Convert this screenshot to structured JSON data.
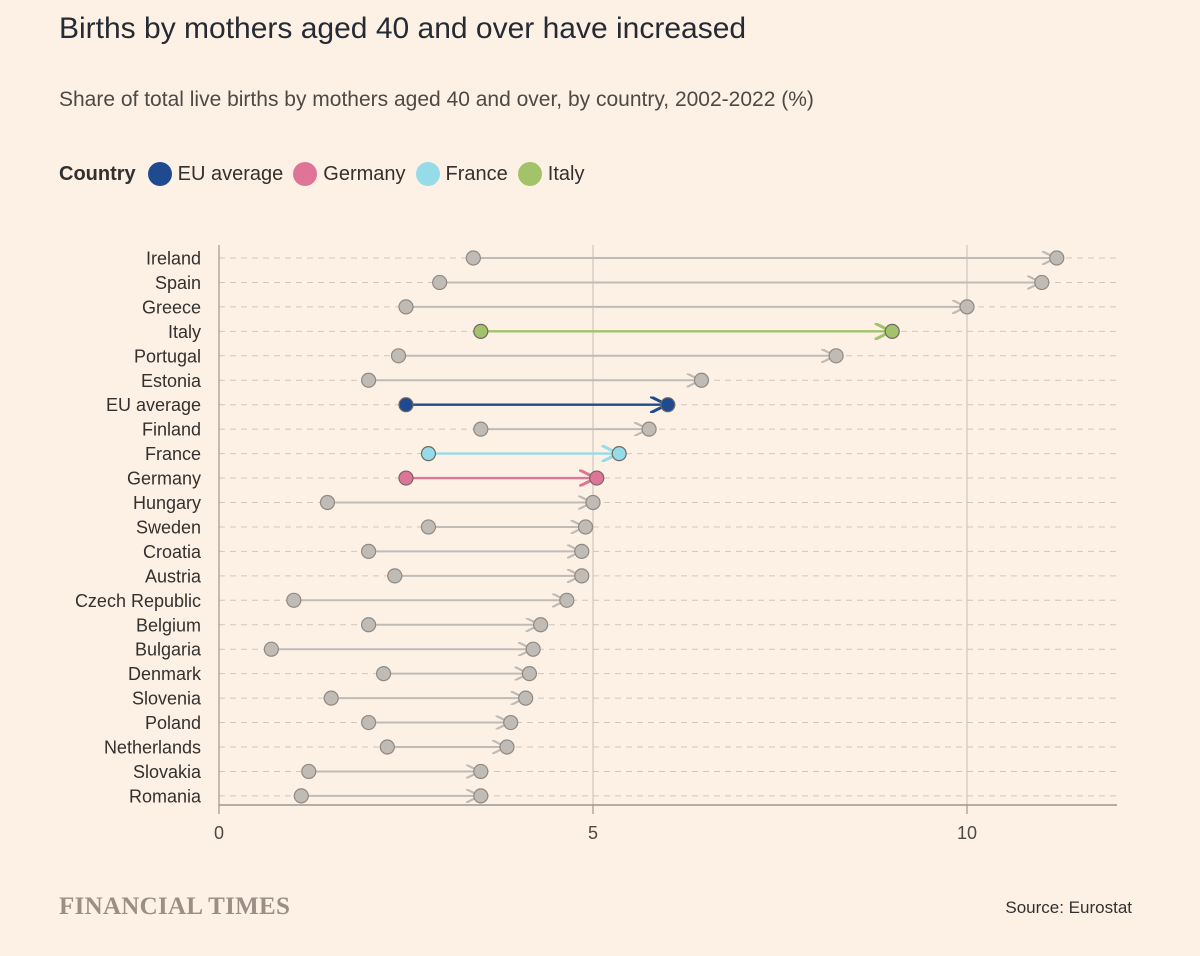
{
  "header": {
    "title": "Births by mothers aged 40 and over have increased",
    "subtitle": "Share of total live births by mothers aged 40 and over, by country, 2002-2022 (%)"
  },
  "legend": {
    "title": "Country",
    "items": [
      {
        "label": "EU average",
        "color": "#204a8f"
      },
      {
        "label": "Germany",
        "color": "#e07496"
      },
      {
        "label": "France",
        "color": "#96dbe8"
      },
      {
        "label": "Italy",
        "color": "#a3c36a"
      }
    ]
  },
  "footer": {
    "logo": "FINANCIAL TIMES",
    "source": "Source: Eurostat"
  },
  "chart_data": {
    "type": "dumbbell",
    "xlim": [
      0,
      12
    ],
    "xticks": [
      0,
      5,
      10
    ],
    "xtick_labels": [
      "0",
      "5",
      "10"
    ],
    "grid": "vertical at ticks, dashed horizontal per row",
    "default_color": "#c1bbb6",
    "rows": [
      {
        "country": "Ireland",
        "start": 3.4,
        "end": 11.2
      },
      {
        "country": "Spain",
        "start": 2.95,
        "end": 11.0
      },
      {
        "country": "Greece",
        "start": 2.5,
        "end": 10.0
      },
      {
        "country": "Italy",
        "start": 3.5,
        "end": 9.0,
        "highlight": "#a3c36a"
      },
      {
        "country": "Portugal",
        "start": 2.4,
        "end": 8.25
      },
      {
        "country": "Estonia",
        "start": 2.0,
        "end": 6.45
      },
      {
        "country": "EU average",
        "start": 2.5,
        "end": 6.0,
        "highlight": "#204a8f"
      },
      {
        "country": "Finland",
        "start": 3.5,
        "end": 5.75
      },
      {
        "country": "France",
        "start": 2.8,
        "end": 5.35,
        "highlight": "#96dbe8"
      },
      {
        "country": "Germany",
        "start": 2.5,
        "end": 5.05,
        "highlight": "#e07496"
      },
      {
        "country": "Hungary",
        "start": 1.45,
        "end": 5.0
      },
      {
        "country": "Sweden",
        "start": 2.8,
        "end": 4.9
      },
      {
        "country": "Croatia",
        "start": 2.0,
        "end": 4.85
      },
      {
        "country": "Austria",
        "start": 2.35,
        "end": 4.85
      },
      {
        "country": "Czech Republic",
        "start": 1.0,
        "end": 4.65
      },
      {
        "country": "Belgium",
        "start": 2.0,
        "end": 4.3
      },
      {
        "country": "Bulgaria",
        "start": 0.7,
        "end": 4.2
      },
      {
        "country": "Denmark",
        "start": 2.2,
        "end": 4.15
      },
      {
        "country": "Slovenia",
        "start": 1.5,
        "end": 4.1
      },
      {
        "country": "Poland",
        "start": 2.0,
        "end": 3.9
      },
      {
        "country": "Netherlands",
        "start": 2.25,
        "end": 3.85
      },
      {
        "country": "Slovakia",
        "start": 1.2,
        "end": 3.5
      },
      {
        "country": "Romania",
        "start": 1.1,
        "end": 3.5
      }
    ]
  }
}
